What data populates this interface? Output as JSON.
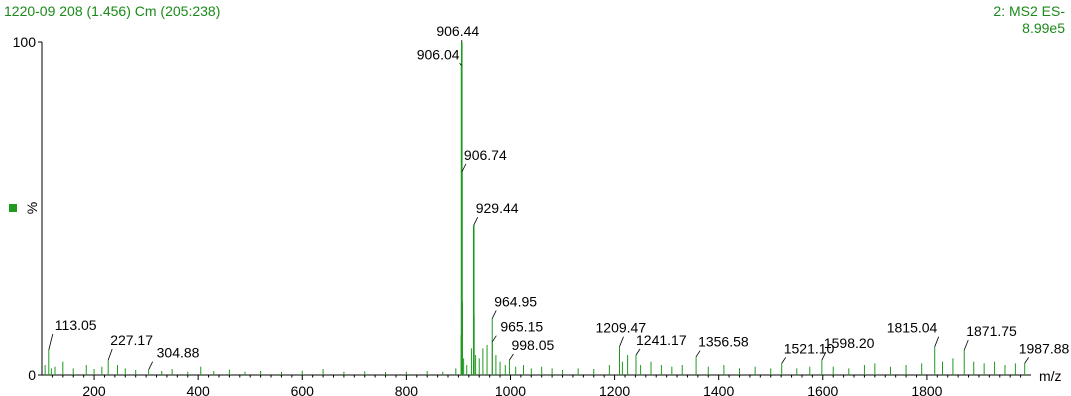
{
  "header": {
    "run_info": "1220-09 208 (1.456) Cm (205:238)",
    "function_label": "2: MS2 ES-",
    "intensity": "8.99e5"
  },
  "colors": {
    "spectrum": "#1f9a1f",
    "text": "#1a8a1a",
    "axis": "#000000"
  },
  "chart_data": {
    "type": "bar",
    "xlabel": "m/z",
    "ylabel": "%",
    "xlim": [
      100,
      2000
    ],
    "ylim": [
      0,
      100
    ],
    "x_ticks": [
      200,
      400,
      600,
      800,
      1000,
      1200,
      1400,
      1600,
      1800
    ],
    "y_ticks": [
      0,
      100
    ],
    "peaks": [
      {
        "x": 106.0,
        "y": 3.0
      },
      {
        "x": 113.05,
        "y": 7.5
      },
      {
        "x": 118.0,
        "y": 2.0
      },
      {
        "x": 125.0,
        "y": 2.5
      },
      {
        "x": 140.0,
        "y": 4.0
      },
      {
        "x": 160.0,
        "y": 2.0
      },
      {
        "x": 185.0,
        "y": 3.0
      },
      {
        "x": 200.0,
        "y": 1.8
      },
      {
        "x": 215.0,
        "y": 2.5
      },
      {
        "x": 227.17,
        "y": 4.5
      },
      {
        "x": 245.0,
        "y": 3.0
      },
      {
        "x": 260.0,
        "y": 2.0
      },
      {
        "x": 280.0,
        "y": 1.5
      },
      {
        "x": 304.88,
        "y": 1.6
      },
      {
        "x": 330.0,
        "y": 1.2
      },
      {
        "x": 350.0,
        "y": 1.8
      },
      {
        "x": 380.0,
        "y": 1.0
      },
      {
        "x": 405.0,
        "y": 2.5
      },
      {
        "x": 430.0,
        "y": 1.2
      },
      {
        "x": 460.0,
        "y": 1.6
      },
      {
        "x": 490.0,
        "y": 1.0
      },
      {
        "x": 520.0,
        "y": 1.2
      },
      {
        "x": 560.0,
        "y": 1.0
      },
      {
        "x": 600.0,
        "y": 1.3
      },
      {
        "x": 640.0,
        "y": 1.8
      },
      {
        "x": 680.0,
        "y": 1.0
      },
      {
        "x": 720.0,
        "y": 1.1
      },
      {
        "x": 760.0,
        "y": 0.9
      },
      {
        "x": 800.0,
        "y": 1.0
      },
      {
        "x": 840.0,
        "y": 1.2
      },
      {
        "x": 870.0,
        "y": 1.0
      },
      {
        "x": 895.0,
        "y": 2.0
      },
      {
        "x": 905.2,
        "y": 12.0
      },
      {
        "x": 906.04,
        "y": 93.0
      },
      {
        "x": 906.44,
        "y": 100.0
      },
      {
        "x": 906.74,
        "y": 61.0
      },
      {
        "x": 907.2,
        "y": 22.0
      },
      {
        "x": 910.0,
        "y": 5.0
      },
      {
        "x": 916.0,
        "y": 3.0
      },
      {
        "x": 925.0,
        "y": 8.0
      },
      {
        "x": 929.44,
        "y": 45.0
      },
      {
        "x": 930.2,
        "y": 18.0
      },
      {
        "x": 933.0,
        "y": 6.0
      },
      {
        "x": 940.0,
        "y": 5.0
      },
      {
        "x": 947.0,
        "y": 8.0
      },
      {
        "x": 955.0,
        "y": 9.0
      },
      {
        "x": 964.95,
        "y": 17.0
      },
      {
        "x": 965.15,
        "y": 10.0
      },
      {
        "x": 972.0,
        "y": 6.0
      },
      {
        "x": 980.0,
        "y": 4.0
      },
      {
        "x": 990.0,
        "y": 3.0
      },
      {
        "x": 998.05,
        "y": 4.5
      },
      {
        "x": 1010.0,
        "y": 2.5
      },
      {
        "x": 1025.0,
        "y": 3.0
      },
      {
        "x": 1040.0,
        "y": 2.0
      },
      {
        "x": 1060.0,
        "y": 2.5
      },
      {
        "x": 1080.0,
        "y": 2.0
      },
      {
        "x": 1100.0,
        "y": 1.5
      },
      {
        "x": 1130.0,
        "y": 2.0
      },
      {
        "x": 1160.0,
        "y": 1.8
      },
      {
        "x": 1190.0,
        "y": 3.0
      },
      {
        "x": 1209.47,
        "y": 8.5
      },
      {
        "x": 1215.0,
        "y": 4.0
      },
      {
        "x": 1225.0,
        "y": 6.0
      },
      {
        "x": 1241.17,
        "y": 6.0
      },
      {
        "x": 1250.0,
        "y": 3.0
      },
      {
        "x": 1270.0,
        "y": 4.0
      },
      {
        "x": 1290.0,
        "y": 3.0
      },
      {
        "x": 1310.0,
        "y": 2.5
      },
      {
        "x": 1330.0,
        "y": 3.0
      },
      {
        "x": 1356.58,
        "y": 5.5
      },
      {
        "x": 1380.0,
        "y": 2.5
      },
      {
        "x": 1410.0,
        "y": 3.0
      },
      {
        "x": 1440.0,
        "y": 2.0
      },
      {
        "x": 1470.0,
        "y": 2.5
      },
      {
        "x": 1500.0,
        "y": 2.0
      },
      {
        "x": 1521.1,
        "y": 3.5
      },
      {
        "x": 1550.0,
        "y": 2.0
      },
      {
        "x": 1575.0,
        "y": 2.5
      },
      {
        "x": 1598.2,
        "y": 4.5
      },
      {
        "x": 1620.0,
        "y": 2.5
      },
      {
        "x": 1650.0,
        "y": 2.0
      },
      {
        "x": 1680.0,
        "y": 3.0
      },
      {
        "x": 1700.0,
        "y": 3.5
      },
      {
        "x": 1730.0,
        "y": 2.5
      },
      {
        "x": 1760.0,
        "y": 3.0
      },
      {
        "x": 1790.0,
        "y": 3.5
      },
      {
        "x": 1815.04,
        "y": 8.5
      },
      {
        "x": 1830.0,
        "y": 4.0
      },
      {
        "x": 1850.0,
        "y": 5.0
      },
      {
        "x": 1871.75,
        "y": 7.5
      },
      {
        "x": 1890.0,
        "y": 4.0
      },
      {
        "x": 1910.0,
        "y": 3.5
      },
      {
        "x": 1930.0,
        "y": 4.0
      },
      {
        "x": 1950.0,
        "y": 3.0
      },
      {
        "x": 1970.0,
        "y": 3.5
      },
      {
        "x": 1987.88,
        "y": 3.5
      }
    ],
    "annotations": [
      {
        "x": 113.05,
        "y": 7.5,
        "label": "113.05"
      },
      {
        "x": 227.17,
        "y": 4.5,
        "label": "227.17"
      },
      {
        "x": 304.88,
        "y": 1.6,
        "label": "304.88"
      },
      {
        "x": 906.44,
        "y": 100.0,
        "label": "906.44"
      },
      {
        "x": 906.04,
        "y": 93.0,
        "label": "906.04"
      },
      {
        "x": 906.74,
        "y": 61.0,
        "label": "906.74"
      },
      {
        "x": 929.44,
        "y": 45.0,
        "label": "929.44"
      },
      {
        "x": 964.95,
        "y": 17.0,
        "label": "964.95"
      },
      {
        "x": 965.15,
        "y": 10.0,
        "label": "965.15"
      },
      {
        "x": 998.05,
        "y": 4.5,
        "label": "998.05"
      },
      {
        "x": 1209.47,
        "y": 8.5,
        "label": "1209.47"
      },
      {
        "x": 1241.17,
        "y": 6.0,
        "label": "1241.17"
      },
      {
        "x": 1356.58,
        "y": 5.5,
        "label": "1356.58"
      },
      {
        "x": 1521.1,
        "y": 3.5,
        "label": "1521.10"
      },
      {
        "x": 1598.2,
        "y": 4.5,
        "label": "1598.20"
      },
      {
        "x": 1815.04,
        "y": 8.5,
        "label": "1815.04"
      },
      {
        "x": 1871.75,
        "y": 7.5,
        "label": "1871.75"
      },
      {
        "x": 1987.88,
        "y": 3.5,
        "label": "1987.88"
      }
    ]
  }
}
